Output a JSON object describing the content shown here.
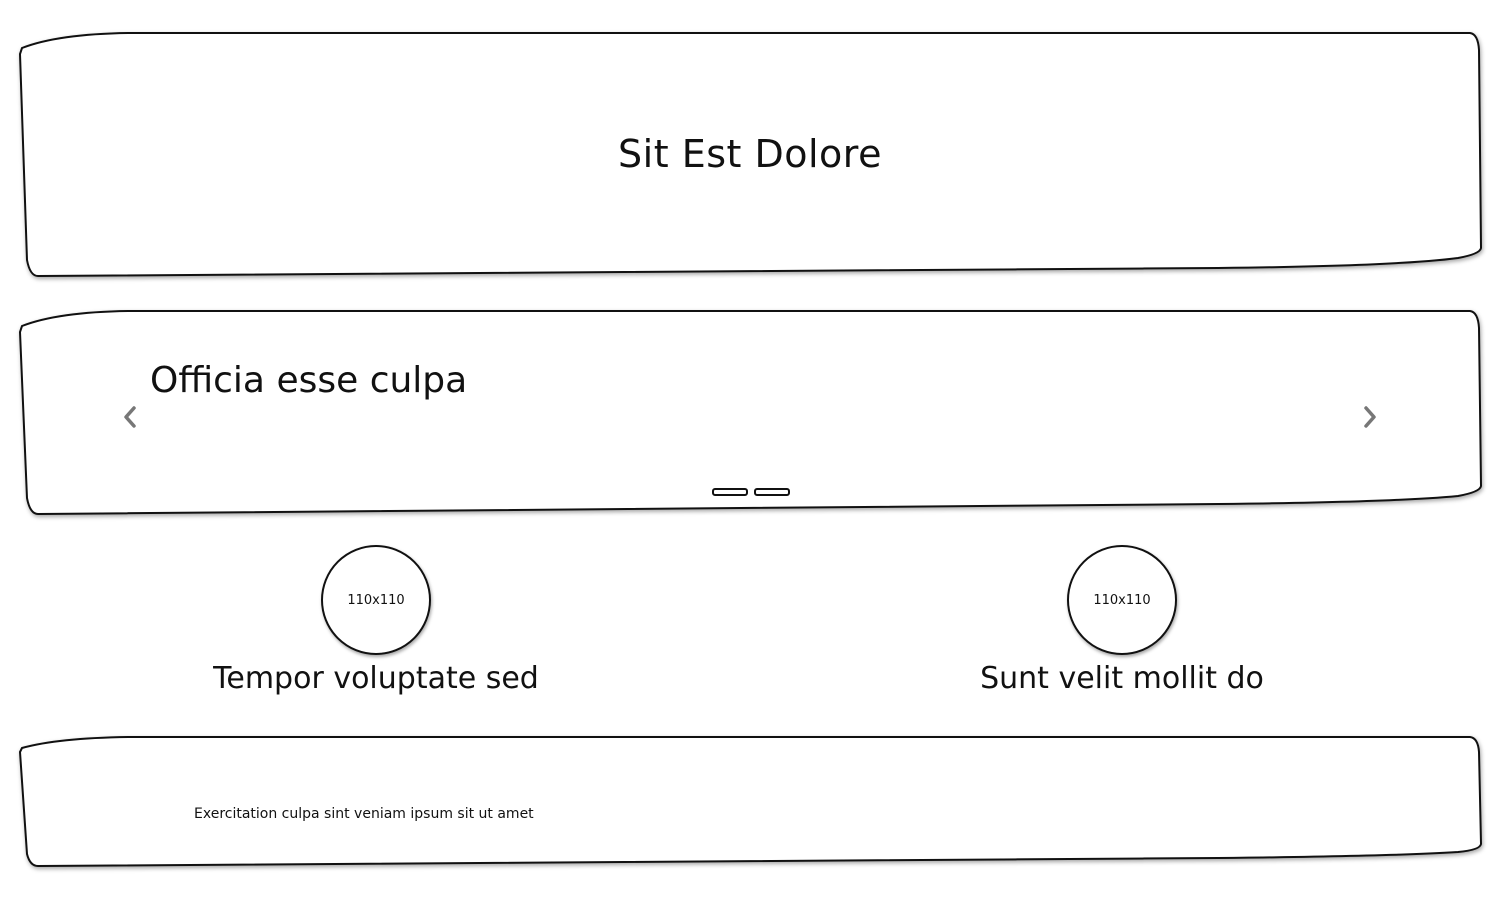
{
  "header": {
    "title": "Sit Est Dolore"
  },
  "carousel": {
    "slide_title": "Officia esse culpa",
    "prev_icon": "chevron-left-icon",
    "next_icon": "chevron-right-icon",
    "indicator_count": 2
  },
  "features": [
    {
      "image_label": "110x110",
      "title": "Tempor voluptate sed"
    },
    {
      "image_label": "110x110",
      "title": "Sunt velit mollit do"
    }
  ],
  "footer": {
    "text": "Exercitation culpa sint veniam ipsum sit ut amet"
  }
}
